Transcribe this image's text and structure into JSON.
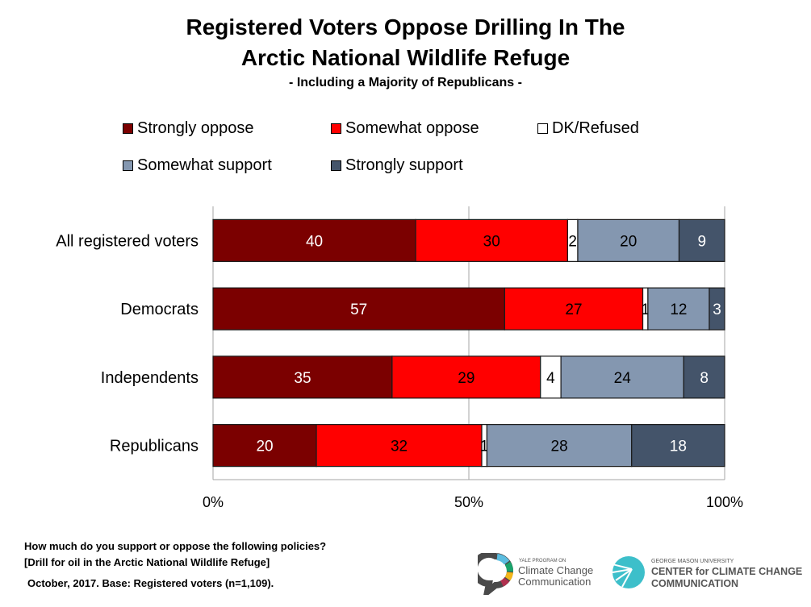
{
  "title_line1": "Registered Voters Oppose Drilling In The",
  "title_line2": "Arctic National Wildlife Refuge",
  "subtitle": "- Including a Majority of Republicans -",
  "chart_data": {
    "type": "bar",
    "orientation": "horizontal",
    "stacked": true,
    "percent_stacked": true,
    "categories": [
      "All registered voters",
      "Democrats",
      "Independents",
      "Republicans"
    ],
    "series": [
      {
        "name": "Strongly oppose",
        "color": "#7b0000",
        "label_color": "#ffffff",
        "values": [
          40,
          57,
          35,
          20
        ]
      },
      {
        "name": "Somewhat oppose",
        "color": "#ff0000",
        "label_color": "#000000",
        "values": [
          30,
          27,
          29,
          32
        ]
      },
      {
        "name": "DK/Refused",
        "color": "#ffffff",
        "label_color": "#000000",
        "values": [
          2,
          1,
          4,
          1
        ]
      },
      {
        "name": "Somewhat support",
        "color": "#8497b0",
        "label_color": "#000000",
        "values": [
          20,
          12,
          24,
          28
        ]
      },
      {
        "name": "Strongly support",
        "color": "#44546a",
        "label_color": "#ffffff",
        "values": [
          9,
          3,
          8,
          18
        ]
      }
    ],
    "xticks": [
      "0%",
      "50%",
      "100%"
    ],
    "xlim": [
      0,
      100
    ],
    "grid": true,
    "legend_position": "top"
  },
  "footer": {
    "question": "How much do you support or oppose the following policies?",
    "item": "[Drill for oil in the Arctic National Wildlife Refuge]",
    "base": "October, 2017. Base: Registered voters (n=1,109)."
  },
  "logos": {
    "yale_small": "YALE PROGRAM ON",
    "yale_line1": "Climate Change",
    "yale_line2": "Communication",
    "gmu_small": "GEORGE MASON UNIVERSITY",
    "gmu_line1": "CENTER for CLIMATE CHANGE",
    "gmu_line2": "COMMUNICATION"
  }
}
